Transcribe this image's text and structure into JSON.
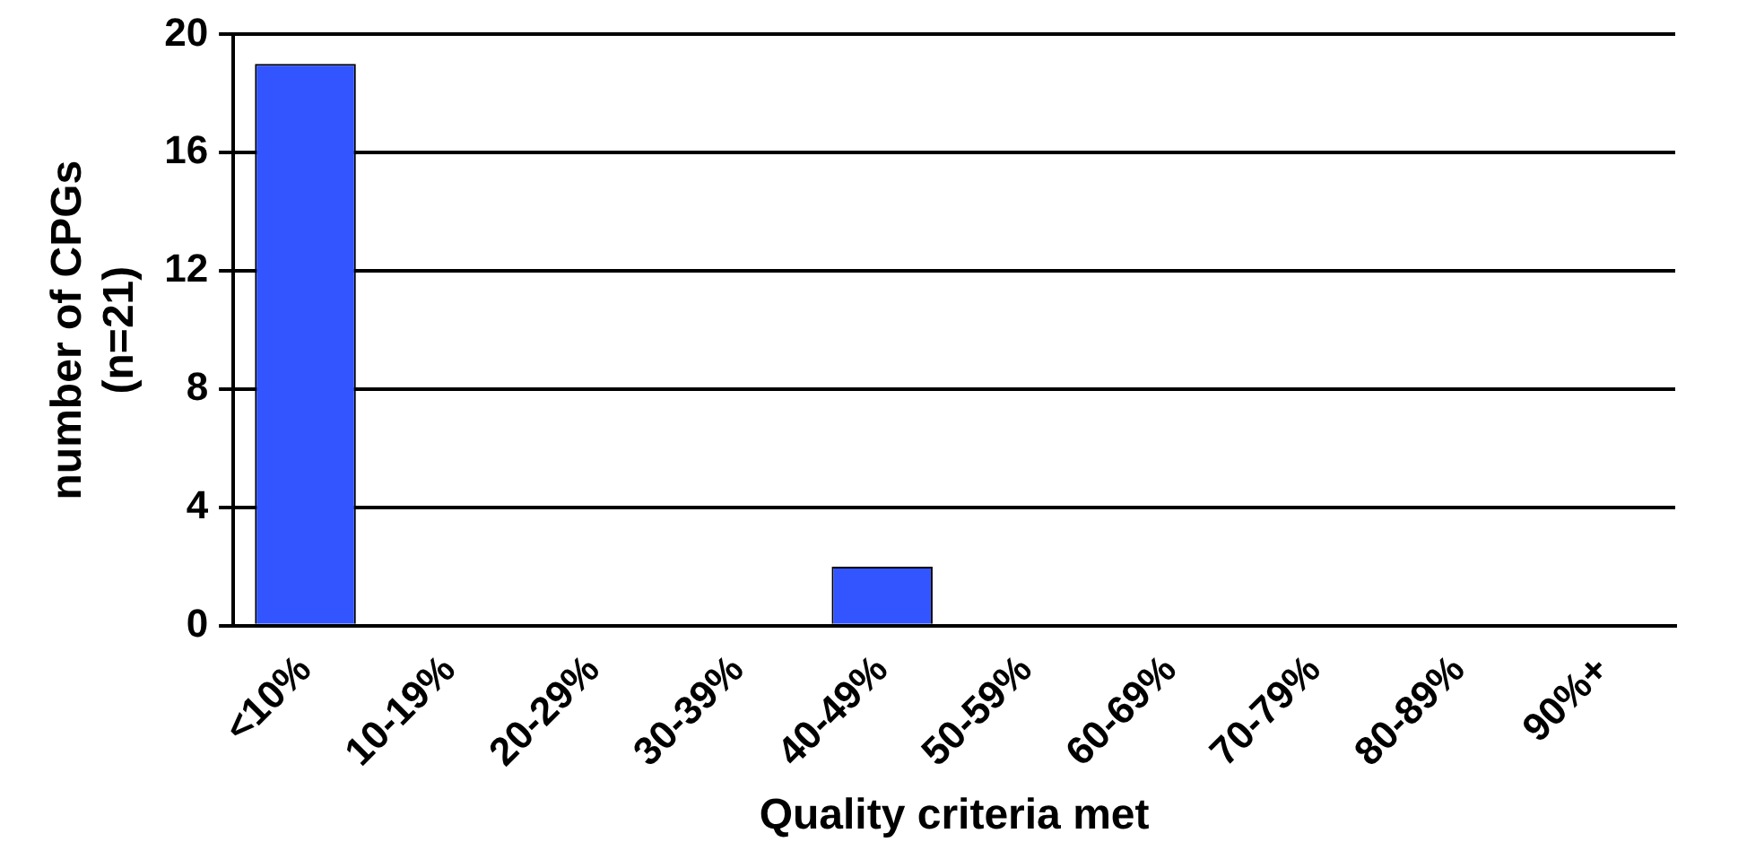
{
  "chart_data": {
    "type": "bar",
    "xlabel": "Quality criteria met",
    "ylabel": "number of CPGs\n(n=21)",
    "categories": [
      "<10%",
      "10-19%",
      "20-29%",
      "30-39%",
      "40-49%",
      "50-59%",
      "60-69%",
      "70-79%",
      "80-89%",
      "90%+"
    ],
    "values": [
      19,
      0,
      0,
      0,
      2,
      0,
      0,
      0,
      0,
      0
    ],
    "color": "#3355ff",
    "ylim": [
      0,
      20
    ],
    "yticks": [
      0,
      4,
      8,
      12,
      16,
      20
    ],
    "grid": "y",
    "legend": false
  }
}
